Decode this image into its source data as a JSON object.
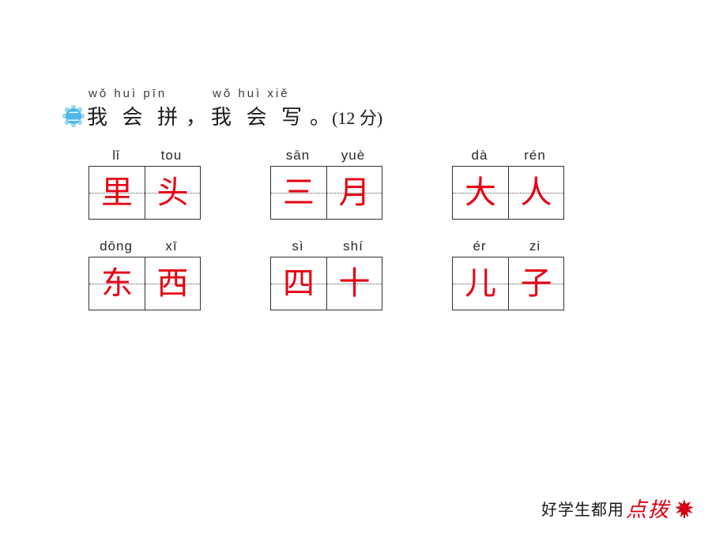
{
  "bullet": {
    "badge_color": "#4fb8e8",
    "petal_color": "#9dd9f2",
    "label": "二",
    "label_color": "#ffffff"
  },
  "title": {
    "group1": {
      "pinyin": "wǒ huì pīn",
      "chinese": "我 会 拼"
    },
    "comma": "，",
    "group2": {
      "pinyin": "wǒ huì xiě",
      "chinese": "我 会 写"
    },
    "period": "。",
    "score": "(12 分)"
  },
  "rows": [
    [
      {
        "pinyin": [
          "lǐ",
          "tou"
        ],
        "chars": [
          "里",
          "头"
        ]
      },
      {
        "pinyin": [
          "sān",
          "yuè"
        ],
        "chars": [
          "三",
          "月"
        ]
      },
      {
        "pinyin": [
          "dà",
          "rén"
        ],
        "chars": [
          "大",
          "人"
        ]
      }
    ],
    [
      {
        "pinyin": [
          "dōng",
          "xī"
        ],
        "chars": [
          "东",
          "西"
        ]
      },
      {
        "pinyin": [
          "sì",
          "shí"
        ],
        "chars": [
          "四",
          "十"
        ]
      },
      {
        "pinyin": [
          "ér",
          "zi"
        ],
        "chars": [
          "儿",
          "子"
        ]
      }
    ]
  ],
  "footer": {
    "text": "好学生都用",
    "brand": "点拨",
    "leaf_color": "#d8000f"
  }
}
